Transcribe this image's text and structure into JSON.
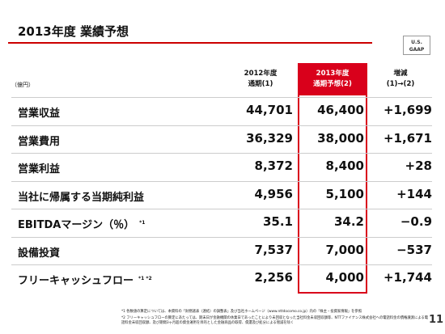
{
  "header": {
    "title": "2013年度 業績予想",
    "badge": [
      "U.S.",
      "GAAP"
    ]
  },
  "table": {
    "unit": "（億円）",
    "columns": [
      {
        "line1": "2012年度",
        "line2": "通期(1)"
      },
      {
        "line1": "2013年度",
        "line2": "通期予想(2)"
      },
      {
        "line1": "増減",
        "line2": "(1)→(2)"
      }
    ],
    "rows": [
      {
        "label": "営業収益",
        "note": null,
        "cells": [
          "44,701",
          "46,400",
          "+1,699"
        ]
      },
      {
        "label": "営業費用",
        "note": null,
        "cells": [
          "36,329",
          "38,000",
          "+1,671"
        ]
      },
      {
        "label": "営業利益",
        "note": null,
        "cells": [
          "8,372",
          "8,400",
          "+28"
        ]
      },
      {
        "label": "当社に帰属する当期純利益",
        "note": null,
        "cells": [
          "4,956",
          "5,100",
          "+144"
        ]
      },
      {
        "label": "EBITDAマージン（％）",
        "note": "*1",
        "cells": [
          "35.1",
          "34.2",
          "−0.9"
        ]
      },
      {
        "label": "設備投資",
        "note": null,
        "cells": [
          "7,537",
          "7,000",
          "−537"
        ]
      },
      {
        "label": "フリーキャッシュフロー",
        "note": "*1 *2",
        "cells": [
          "2,256",
          "4,000",
          "+1,744"
        ]
      }
    ]
  },
  "footnotes": [
    "*1 各数値の算定については、本資料の「財務諸表（連結）の調整表」及び当社ホームページ（www.nttdocomo.co.jp）内の「株主・投資家情報」を参照",
    "*2 フリーキャッシュフローの算定にあたっては、期末日が金融機関の休業日であったことにより未回収となった当社料金未収回収額等、NTTファイナンス株式会社への電話料金の債権譲渡による電話料金未収回収額、及び期間3ヶ月超の資金運用を目的とした金融商品の取得、償還及び処分による増減を除く"
  ],
  "page_number": "11"
}
